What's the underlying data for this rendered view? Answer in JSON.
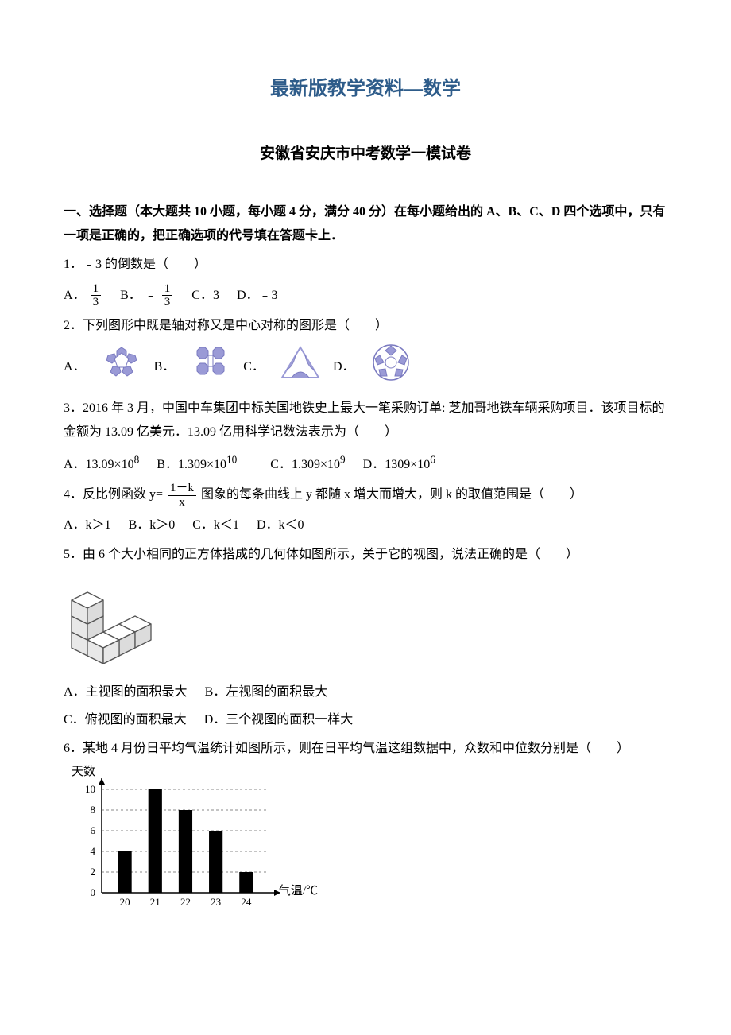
{
  "titles": {
    "main": "最新版教学资料—数学",
    "sub": "安徽省安庆市中考数学一模试卷"
  },
  "section1": {
    "header": "一、选择题（本大题共 10 小题，每小题 4 分，满分 40 分）在每小题给出的 A、B、C、D 四个选项中，只有一项是正确的，把正确选项的代号填在答题卡上．"
  },
  "q1": {
    "stem": "1．﹣3 的倒数是（　　）",
    "labelA": "A．",
    "labelB": "B．",
    "labelC": "C．3",
    "labelD": "D．﹣3",
    "fracA_num": "1",
    "fracA_den": "3",
    "fracB_prefix": "﹣",
    "fracB_num": "1",
    "fracB_den": "3"
  },
  "q2": {
    "stem": "2．下列图形中既是轴对称又是中心对称的图形是（　　）",
    "labelA": "A．",
    "labelB": "B．",
    "labelC": "C．",
    "labelD": "D．",
    "colors": {
      "fill": "#9a9ad6",
      "stroke": "#7a7ac0",
      "white": "#ffffff",
      "line": "#444"
    }
  },
  "q3": {
    "stem": "3．2016 年 3 月，中国中车集团中标美国地铁史上最大一笔采购订单: 芝加哥地铁车辆采购项目．该项目标的金额为 13.09 亿美元．13.09 亿用科学记数法表示为（　　）",
    "optA": "A．13.09×10",
    "optA_exp": "8",
    "optB": "B．1.309×10",
    "optB_exp": "10",
    "optC": "C．1.309×10",
    "optC_exp": "9",
    "optD": "D．1309×10",
    "optD_exp": "6"
  },
  "q4": {
    "stem_pre": "4．反比例函数 y=",
    "frac_num": "1－k",
    "frac_den": "x",
    "stem_post": "图象的每条曲线上 y 都随 x 增大而增大，则 k 的取值范围是（　　）",
    "optA": "A．k＞1",
    "optB": "B．k＞0",
    "optC": "C．k＜1",
    "optD": "D．k＜0"
  },
  "q5": {
    "stem": "5．由 6 个大小相同的正方体搭成的几何体如图所示，关于它的视图，说法正确的是（　　）",
    "optA": "A．主视图的面积最大",
    "optB": "B．左视图的面积最大",
    "optC": "C．俯视图的面积最大",
    "optD": "D．三个视图的面积一样大",
    "colors": {
      "face": "#f5f5f5",
      "top": "#ffffff",
      "side": "#e0e0e0",
      "edge": "#555"
    }
  },
  "q6": {
    "stem": "6．某地 4 月份日平均气温统计如图所示，则在日平均气温这组数据中，众数和中位数分别是（　　）",
    "chart": {
      "type": "bar",
      "y_label": "天数",
      "x_label": "气温/℃",
      "categories": [
        "20",
        "21",
        "22",
        "23",
        "24"
      ],
      "values": [
        4,
        10,
        8,
        6,
        2
      ],
      "ylim": [
        0,
        10
      ],
      "ytick_step": 2,
      "yticks": [
        "0",
        "2",
        "4",
        "6",
        "8",
        "10"
      ],
      "bar_color": "#000000",
      "axis_color": "#000000",
      "grid_color": "#888888",
      "background_color": "#ffffff",
      "label_fontsize": 13,
      "bar_width": 0.45
    }
  }
}
